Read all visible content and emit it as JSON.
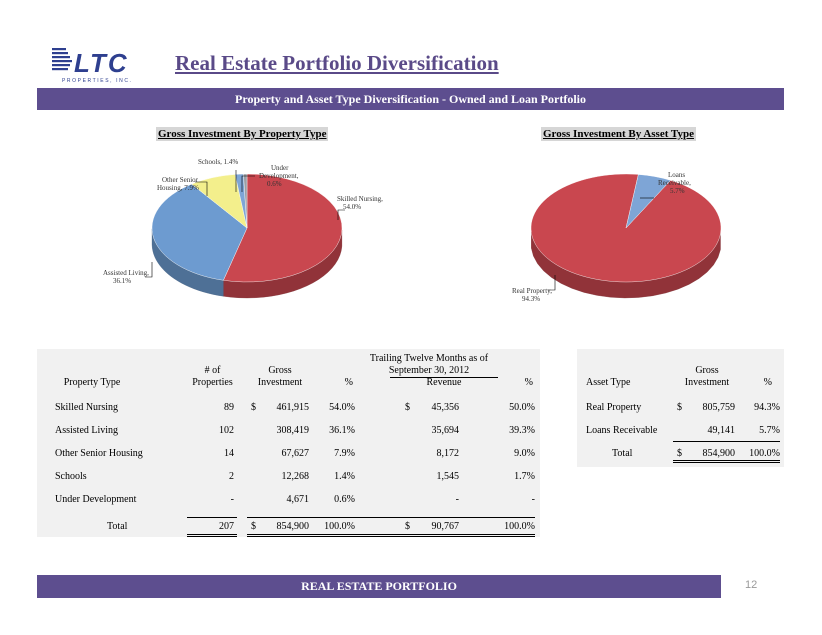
{
  "header": {
    "title": "Real Estate Portfolio Diversification",
    "banner": "Property and Asset Type Diversification - Owned and Loan Portfolio",
    "logo_text": "LTC",
    "logo_subtext": "PROPERTIES, INC."
  },
  "charts": {
    "property_title": "Gross Investment By Property Type",
    "asset_title": "Gross Investment By Asset Type"
  },
  "chart_data": [
    {
      "type": "pie",
      "title": "Gross Investment By Property Type",
      "categories": [
        "Skilled Nursing",
        "Assisted Living",
        "Other Senior Housing",
        "Schools",
        "Under Development"
      ],
      "values": [
        54.0,
        36.1,
        7.9,
        1.4,
        0.6
      ],
      "labels": [
        "Skilled Nursing, 54.0%",
        "Assisted Living, 36.1%",
        "Other Senior Housing, 7.9%",
        "Schools, 1.4%",
        "Under Development, 0.6%"
      ],
      "colors": [
        "#c9474f",
        "#6d9bd0",
        "#f3ef8c",
        "#7ea5d6",
        "#9aa0a6"
      ]
    },
    {
      "type": "pie",
      "title": "Gross Investment By Asset Type",
      "categories": [
        "Real Property",
        "Loans Receivable"
      ],
      "values": [
        94.3,
        5.7
      ],
      "labels": [
        "Real Property, 94.3%",
        "Loans Receivable, 5.7%"
      ],
      "colors": [
        "#c9474f",
        "#7ea5d6"
      ]
    }
  ],
  "pie_labels": {
    "skilled": [
      "Skilled Nursing,",
      "54.0%"
    ],
    "assisted": [
      "Assisted Living,",
      "36.1%"
    ],
    "other": [
      "Other Senior",
      "Housing, 7.9%"
    ],
    "schools": [
      "Schools, 1.4%"
    ],
    "under": [
      "Under",
      "Development,",
      "0.6%"
    ],
    "real": [
      "Real Property,",
      "94.3%"
    ],
    "loans": [
      "Loans",
      "Receivable,",
      "5.7%"
    ]
  },
  "property_table": {
    "header_ttm": [
      "Trailing Twelve Months as of",
      "September 30, 2012"
    ],
    "col_property_type": "Property Type",
    "col_num": [
      "# of",
      "Properties"
    ],
    "col_gross": [
      "Gross",
      "Investment"
    ],
    "col_pct": "%",
    "col_revenue": "Revenue",
    "col_rev_pct": "%",
    "rows": [
      {
        "type": "Skilled Nursing",
        "num": "89",
        "dollar": "$",
        "gross": "461,915",
        "pct": "54.0%",
        "rdollar": "$",
        "revenue": "45,356",
        "rpct": "50.0%"
      },
      {
        "type": "Assisted Living",
        "num": "102",
        "dollar": "",
        "gross": "308,419",
        "pct": "36.1%",
        "rdollar": "",
        "revenue": "35,694",
        "rpct": "39.3%"
      },
      {
        "type": "Other Senior Housing",
        "num": "14",
        "dollar": "",
        "gross": "67,627",
        "pct": "7.9%",
        "rdollar": "",
        "revenue": "8,172",
        "rpct": "9.0%"
      },
      {
        "type": "Schools",
        "num": "2",
        "dollar": "",
        "gross": "12,268",
        "pct": "1.4%",
        "rdollar": "",
        "revenue": "1,545",
        "rpct": "1.7%"
      },
      {
        "type": "Under Development",
        "num": "-",
        "dollar": "",
        "gross": "4,671",
        "pct": "0.6%",
        "rdollar": "",
        "revenue": "-",
        "rpct": "-"
      }
    ],
    "total": {
      "type": "Total",
      "num": "207",
      "dollar": "$",
      "gross": "854,900",
      "pct": "100.0%",
      "rdollar": "$",
      "revenue": "90,767",
      "rpct": "100.0%"
    }
  },
  "asset_table": {
    "col_asset_type": "Asset Type",
    "col_gross": [
      "Gross",
      "Investment"
    ],
    "col_pct": "%",
    "rows": [
      {
        "type": "Real Property",
        "dollar": "$",
        "gross": "805,759",
        "pct": "94.3%"
      },
      {
        "type": "Loans Receivable",
        "dollar": "",
        "gross": "49,141",
        "pct": "5.7%"
      }
    ],
    "total": {
      "type": "Total",
      "dollar": "$",
      "gross": "854,900",
      "pct": "100.0%"
    }
  },
  "footer": {
    "label": "REAL ESTATE PORTFOLIO",
    "page_number": "12"
  }
}
